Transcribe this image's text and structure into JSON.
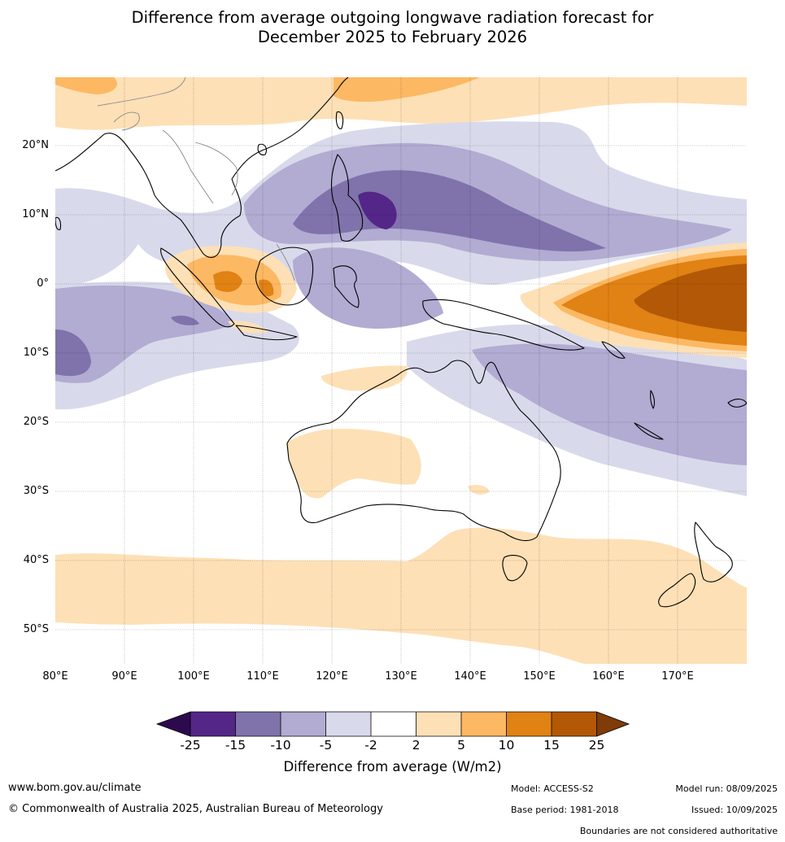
{
  "title_line1": "Difference from average outgoing longwave radiation forecast for",
  "title_line2": "December 2025 to February 2026",
  "lat_labels": [
    "20°N",
    "10°N",
    "0°",
    "10°S",
    "20°S",
    "30°S",
    "40°S",
    "50°S"
  ],
  "lon_labels": [
    "80°E",
    "90°E",
    "100°E",
    "110°E",
    "120°E",
    "130°E",
    "140°E",
    "150°E",
    "160°E",
    "170°E"
  ],
  "colorbar": {
    "ticks": [
      "-25",
      "-15",
      "-10",
      "-5",
      "-2",
      "2",
      "5",
      "10",
      "15",
      "25"
    ],
    "title": "Difference from average (W/m2)",
    "colors": {
      "lt_-25": "#2d0a4e",
      "-25_-15": "#542688",
      "-15_-10": "#8073ac",
      "-10_-5": "#b2abd2",
      "-5_-2": "#d8daeb",
      "-2_2": "#ffffff",
      "2_5": "#fee0b6",
      "5_10": "#fdb863",
      "10_15": "#e08214",
      "15_25": "#b35806",
      "gt_25": "#7f3b08"
    }
  },
  "footer": {
    "website": "www.bom.gov.au/climate",
    "copyright": "© Commonwealth of Australia 2025, Australian Bureau of Meteorology",
    "model": "Model: ACCESS-S2",
    "base_period": "Base period: 1981-2018",
    "model_run": "Model run: 08/09/2025",
    "issued": "Issued: 10/09/2025",
    "disclaimer": "Boundaries are not considered authoritative"
  }
}
